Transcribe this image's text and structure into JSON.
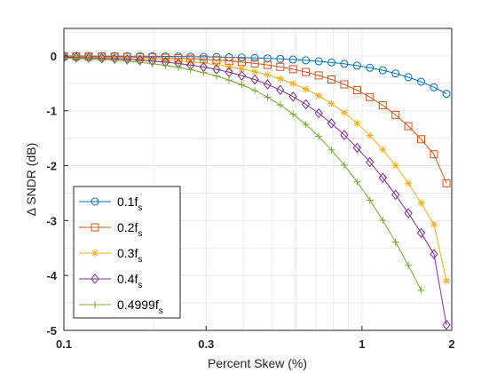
{
  "chart_data": {
    "type": "line",
    "xlabel": "Percent Skew (%)",
    "ylabel": "Δ SNDR (dB)",
    "xscale": "log",
    "xlim": [
      0.1,
      2
    ],
    "ylim": [
      -5,
      0.5
    ],
    "xticks": [
      {
        "value": 0.1,
        "label": "0.1"
      },
      {
        "value": 0.3,
        "label": "0.3"
      },
      {
        "value": 1,
        "label": "1"
      },
      {
        "value": 2,
        "label": "2"
      }
    ],
    "yticks": [
      {
        "value": 0,
        "label": "0"
      },
      {
        "value": -1,
        "label": "-1"
      },
      {
        "value": -2,
        "label": "-2"
      },
      {
        "value": -3,
        "label": "-3"
      },
      {
        "value": -4,
        "label": "-4"
      },
      {
        "value": -5,
        "label": "-5"
      }
    ],
    "grid": true,
    "legend_position": "bottom-left",
    "series": [
      {
        "label_main": "0.1f",
        "label_sub": "s",
        "color": "#0072BD",
        "marker": "circle",
        "x": [
          0.1,
          0.11,
          0.121,
          0.134,
          0.148,
          0.163,
          0.18,
          0.198,
          0.219,
          0.242,
          0.266,
          0.294,
          0.325,
          0.358,
          0.395,
          0.437,
          0.482,
          0.532,
          0.587,
          0.648,
          0.716,
          0.79,
          0.872,
          0.963,
          1.063,
          1.174,
          1.296,
          1.43,
          1.579,
          1.743,
          1.92
        ],
        "y": [
          -0.002,
          -0.002,
          -0.003,
          -0.003,
          -0.004,
          -0.005,
          -0.006,
          -0.008,
          -0.009,
          -0.011,
          -0.014,
          -0.017,
          -0.02,
          -0.025,
          -0.03,
          -0.037,
          -0.045,
          -0.055,
          -0.067,
          -0.081,
          -0.099,
          -0.12,
          -0.146,
          -0.178,
          -0.216,
          -0.263,
          -0.32,
          -0.388,
          -0.471,
          -0.571,
          -0.69
        ]
      },
      {
        "label_main": "0.2f",
        "label_sub": "s",
        "color": "#D95319",
        "marker": "square",
        "x": [
          0.1,
          0.11,
          0.121,
          0.134,
          0.148,
          0.163,
          0.18,
          0.198,
          0.219,
          0.242,
          0.266,
          0.294,
          0.325,
          0.358,
          0.395,
          0.437,
          0.482,
          0.532,
          0.587,
          0.648,
          0.716,
          0.79,
          0.872,
          0.963,
          1.063,
          1.174,
          1.296,
          1.43,
          1.579,
          1.743,
          1.92
        ],
        "y": [
          -0.007,
          -0.009,
          -0.011,
          -0.013,
          -0.016,
          -0.019,
          -0.024,
          -0.029,
          -0.035,
          -0.042,
          -0.051,
          -0.062,
          -0.076,
          -0.092,
          -0.112,
          -0.136,
          -0.165,
          -0.2,
          -0.243,
          -0.294,
          -0.356,
          -0.43,
          -0.519,
          -0.625,
          -0.751,
          -0.9,
          -1.075,
          -1.28,
          -1.518,
          -1.793,
          -2.32
        ]
      },
      {
        "label_main": "0.3f",
        "label_sub": "s",
        "color": "#EDB120",
        "marker": "asterisk",
        "x": [
          0.1,
          0.11,
          0.121,
          0.134,
          0.148,
          0.163,
          0.18,
          0.198,
          0.219,
          0.242,
          0.266,
          0.294,
          0.325,
          0.358,
          0.395,
          0.437,
          0.482,
          0.532,
          0.587,
          0.648,
          0.716,
          0.79,
          0.872,
          0.963,
          1.063,
          1.174,
          1.296,
          1.43,
          1.579,
          1.743,
          1.92
        ],
        "y": [
          -0.015,
          -0.019,
          -0.023,
          -0.028,
          -0.034,
          -0.041,
          -0.05,
          -0.061,
          -0.074,
          -0.09,
          -0.109,
          -0.132,
          -0.161,
          -0.195,
          -0.236,
          -0.286,
          -0.346,
          -0.418,
          -0.504,
          -0.606,
          -0.726,
          -0.868,
          -1.034,
          -1.227,
          -1.45,
          -1.705,
          -1.995,
          -2.32,
          -2.678,
          -3.07,
          -4.1
        ]
      },
      {
        "label_main": "0.4f",
        "label_sub": "s",
        "color": "#7E2F8E",
        "marker": "diamond",
        "x": [
          0.1,
          0.11,
          0.121,
          0.134,
          0.148,
          0.163,
          0.18,
          0.198,
          0.219,
          0.242,
          0.266,
          0.294,
          0.325,
          0.358,
          0.395,
          0.437,
          0.482,
          0.532,
          0.587,
          0.648,
          0.716,
          0.79,
          0.872,
          0.963,
          1.063,
          1.174,
          1.296,
          1.43,
          1.579,
          1.743,
          1.92
        ],
        "y": [
          -0.024,
          -0.029,
          -0.036,
          -0.043,
          -0.052,
          -0.064,
          -0.077,
          -0.094,
          -0.114,
          -0.138,
          -0.168,
          -0.203,
          -0.246,
          -0.297,
          -0.359,
          -0.432,
          -0.52,
          -0.622,
          -0.743,
          -0.883,
          -1.045,
          -1.23,
          -1.44,
          -1.675,
          -1.935,
          -2.22,
          -2.53,
          -2.865,
          -3.225,
          -3.61,
          -4.9
        ]
      },
      {
        "label_main": "0.4999f",
        "label_sub": "s",
        "color": "#77AC30",
        "marker": "plus",
        "x": [
          0.1,
          0.11,
          0.121,
          0.134,
          0.148,
          0.163,
          0.18,
          0.198,
          0.219,
          0.242,
          0.266,
          0.294,
          0.325,
          0.358,
          0.395,
          0.437,
          0.482,
          0.532,
          0.587,
          0.648,
          0.716,
          0.79,
          0.872,
          0.963,
          1.063,
          1.174,
          1.296,
          1.43,
          1.579
        ],
        "y": [
          -0.037,
          -0.045,
          -0.055,
          -0.066,
          -0.08,
          -0.097,
          -0.118,
          -0.143,
          -0.173,
          -0.209,
          -0.252,
          -0.304,
          -0.366,
          -0.44,
          -0.527,
          -0.63,
          -0.752,
          -0.894,
          -1.06,
          -1.25,
          -1.468,
          -1.715,
          -1.99,
          -2.295,
          -2.63,
          -2.995,
          -3.39,
          -3.815,
          -4.27
        ]
      }
    ]
  }
}
